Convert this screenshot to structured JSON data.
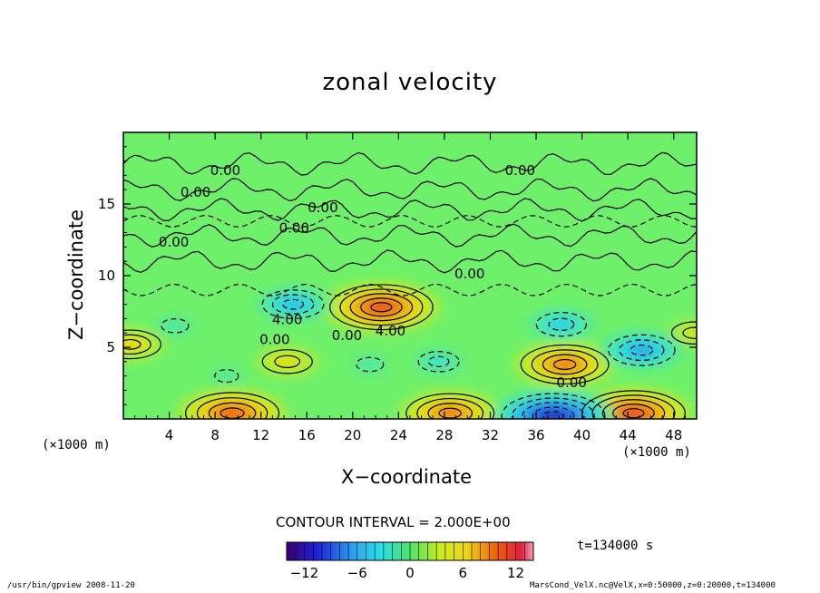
{
  "page": {
    "footer_left": "/usr/bin/gpview  2008-11-20",
    "footer_right": "MarsCond_VelX.nc@VelX,x=0:50000,z=0:20000,t=134000",
    "time_label": "t=134000 s",
    "contour_interval": "CONTOUR INTERVAL = 2.000E+00"
  },
  "chart_data": {
    "type": "heatmap",
    "title": "zonal velocity",
    "xlabel": "X−coordinate",
    "ylabel": "Z−coordinate",
    "x_unit": "(×1000 m)",
    "y_unit": "(×1000 m)",
    "xlim": [
      0,
      50
    ],
    "ylim": [
      0,
      20
    ],
    "x_ticks": [
      4,
      8,
      12,
      16,
      20,
      24,
      28,
      32,
      36,
      40,
      44,
      48
    ],
    "y_ticks": [
      5,
      10,
      15
    ],
    "colorbar": {
      "min": -14,
      "max": 14,
      "ticks": [
        -12,
        -6,
        0,
        6,
        12
      ],
      "tick_labels": [
        "−12",
        "−6",
        "0",
        "6",
        "12"
      ]
    },
    "contour_labels": [
      {
        "text": "0.00",
        "x": 8.9,
        "y": 17.3
      },
      {
        "text": "0.00",
        "x": 6.3,
        "y": 15.8
      },
      {
        "text": "0.00",
        "x": 34.6,
        "y": 17.3
      },
      {
        "text": "0.00",
        "x": 17.4,
        "y": 14.7
      },
      {
        "text": "0.00",
        "x": 14.9,
        "y": 13.3
      },
      {
        "text": "0.00",
        "x": 4.4,
        "y": 12.3
      },
      {
        "text": "0.00",
        "x": 30.2,
        "y": 10.1
      },
      {
        "text": "4.00",
        "x": 14.3,
        "y": 6.9
      },
      {
        "text": "0.00",
        "x": 13.2,
        "y": 5.5
      },
      {
        "text": "0.00",
        "x": 19.5,
        "y": 5.8
      },
      {
        "text": "4.00",
        "x": 23.3,
        "y": 6.1
      },
      {
        "text": "0.00",
        "x": 39.1,
        "y": 2.5
      }
    ],
    "features": [
      {
        "x": 22.5,
        "y": 7.8,
        "value": 14
      },
      {
        "x": 38.5,
        "y": 3.8,
        "value": 12
      },
      {
        "x": 44.5,
        "y": 0.4,
        "value": 14
      },
      {
        "x": 9.5,
        "y": 0.4,
        "value": 13
      },
      {
        "x": 28.5,
        "y": 0.4,
        "value": 12
      },
      {
        "x": 14.3,
        "y": 4.0,
        "value": 7
      },
      {
        "x": 0.6,
        "y": 5.2,
        "value": 8
      },
      {
        "x": 49.8,
        "y": 6.0,
        "value": 6
      },
      {
        "x": 45.2,
        "y": 4.8,
        "value": -9
      },
      {
        "x": 37.5,
        "y": 0.2,
        "value": -14
      },
      {
        "x": 14.8,
        "y": 8.0,
        "value": -8
      },
      {
        "x": 38.2,
        "y": 6.6,
        "value": -7
      },
      {
        "x": 4.5,
        "y": 6.5,
        "value": -4
      },
      {
        "x": 27.5,
        "y": 4.0,
        "value": -5
      },
      {
        "x": 21.5,
        "y": 3.8,
        "value": -4
      },
      {
        "x": 9.0,
        "y": 3.0,
        "value": -3
      }
    ]
  }
}
